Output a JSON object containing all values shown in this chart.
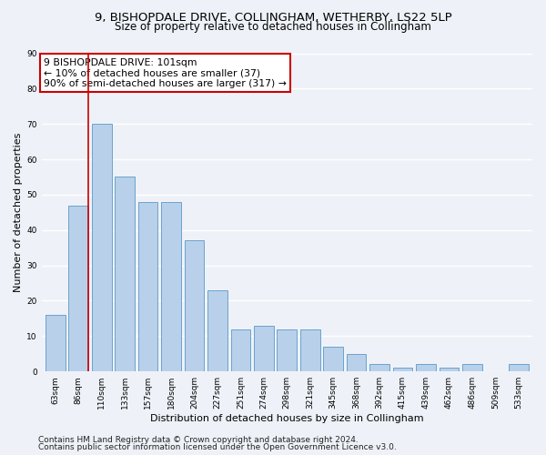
{
  "title1": "9, BISHOPDALE DRIVE, COLLINGHAM, WETHERBY, LS22 5LP",
  "title2": "Size of property relative to detached houses in Collingham",
  "xlabel": "Distribution of detached houses by size in Collingham",
  "ylabel": "Number of detached properties",
  "categories": [
    "63sqm",
    "86sqm",
    "110sqm",
    "133sqm",
    "157sqm",
    "180sqm",
    "204sqm",
    "227sqm",
    "251sqm",
    "274sqm",
    "298sqm",
    "321sqm",
    "345sqm",
    "368sqm",
    "392sqm",
    "415sqm",
    "439sqm",
    "462sqm",
    "486sqm",
    "509sqm",
    "533sqm"
  ],
  "values": [
    16,
    47,
    70,
    55,
    48,
    48,
    37,
    23,
    12,
    13,
    12,
    12,
    7,
    5,
    2,
    1,
    2,
    1,
    2,
    0,
    2
  ],
  "bar_color": "#b8d0ea",
  "bar_edge_color": "#6ba3cc",
  "vline_color": "#cc0000",
  "annotation_box_text": "9 BISHOPDALE DRIVE: 101sqm\n← 10% of detached houses are smaller (37)\n90% of semi-detached houses are larger (317) →",
  "annotation_box_color": "#ffffff",
  "annotation_box_edge_color": "#cc0000",
  "ylim": [
    0,
    90
  ],
  "yticks": [
    0,
    10,
    20,
    30,
    40,
    50,
    60,
    70,
    80,
    90
  ],
  "footer1": "Contains HM Land Registry data © Crown copyright and database right 2024.",
  "footer2": "Contains public sector information licensed under the Open Government Licence v3.0.",
  "bg_color": "#eef2f8",
  "plot_bg_color": "#eef2f8",
  "grid_color": "#ffffff",
  "title1_fontsize": 9.5,
  "title2_fontsize": 8.5,
  "annotation_fontsize": 7.8,
  "footer_fontsize": 6.5,
  "ylabel_fontsize": 8,
  "xlabel_fontsize": 8
}
